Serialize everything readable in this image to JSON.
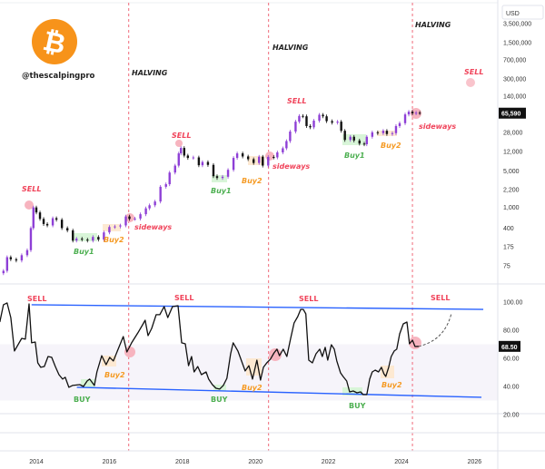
{
  "brand": {
    "handle": "@thescalpingpro",
    "logo": "bitcoin-logo",
    "logo_color": "#F7931A"
  },
  "colors": {
    "up": "#8E3FD6",
    "down": "#111111",
    "halving": "#F06A7A",
    "sell": "#F0435A",
    "buy": "#4CAF50",
    "buy2": "#F59A23",
    "channel": "#2962FF",
    "band": "#F6F4FA"
  },
  "price_axis": {
    "currency": "USD",
    "ticks": [
      "3,500,000",
      "1,500,000",
      "700,000",
      "300,000",
      "140,000",
      "28,000",
      "12,000",
      "5,000",
      "2,200",
      "1,000",
      "400",
      "175",
      "75"
    ],
    "current_label": "65,590"
  },
  "osc_axis": {
    "ticks": [
      "100.00",
      "80.00",
      "60.00",
      "40.00",
      "20.00"
    ],
    "current_label": "68.50"
  },
  "time_axis": {
    "ticks": [
      "2014",
      "2016",
      "2018",
      "2020",
      "2022",
      "2024",
      "2026"
    ]
  },
  "annotations": {
    "halving": "HALVING",
    "sell": "SELL",
    "buy": "BUY",
    "buy1": "Buy1",
    "buy2": "Buy2",
    "sideways": "sideways"
  },
  "chart_data": [
    {
      "type": "candlestick",
      "scale": "log",
      "ylabel": "USD",
      "ylim": [
        50,
        3500000
      ],
      "xlim": [
        2013.0,
        2026.6
      ],
      "current_value": 65590,
      "halvings": [
        2016.53,
        2020.36,
        2024.3
      ],
      "close": [
        [
          2013.1,
          60
        ],
        [
          2013.2,
          110
        ],
        [
          2013.3,
          100
        ],
        [
          2013.45,
          95
        ],
        [
          2013.6,
          120
        ],
        [
          2013.75,
          150
        ],
        [
          2013.85,
          400
        ],
        [
          2013.92,
          1000
        ],
        [
          2014.0,
          800
        ],
        [
          2014.1,
          600
        ],
        [
          2014.2,
          480
        ],
        [
          2014.3,
          450
        ],
        [
          2014.45,
          620
        ],
        [
          2014.55,
          580
        ],
        [
          2014.7,
          400
        ],
        [
          2014.85,
          360
        ],
        [
          2015.0,
          230
        ],
        [
          2015.1,
          250
        ],
        [
          2015.25,
          240
        ],
        [
          2015.4,
          230
        ],
        [
          2015.55,
          270
        ],
        [
          2015.7,
          240
        ],
        [
          2015.85,
          330
        ],
        [
          2016.0,
          420
        ],
        [
          2016.15,
          430
        ],
        [
          2016.3,
          450
        ],
        [
          2016.45,
          670
        ],
        [
          2016.55,
          600
        ],
        [
          2016.7,
          610
        ],
        [
          2016.85,
          740
        ],
        [
          2017.0,
          960
        ],
        [
          2017.1,
          1100
        ],
        [
          2017.25,
          1300
        ],
        [
          2017.4,
          2500
        ],
        [
          2017.55,
          2800
        ],
        [
          2017.65,
          4700
        ],
        [
          2017.8,
          6400
        ],
        [
          2017.9,
          11000
        ],
        [
          2017.96,
          14000
        ],
        [
          2018.05,
          10000
        ],
        [
          2018.15,
          9000
        ],
        [
          2018.3,
          9200
        ],
        [
          2018.45,
          6500
        ],
        [
          2018.55,
          7500
        ],
        [
          2018.7,
          6600
        ],
        [
          2018.85,
          4000
        ],
        [
          2018.95,
          3700
        ],
        [
          2019.1,
          3900
        ],
        [
          2019.25,
          5300
        ],
        [
          2019.4,
          9000
        ],
        [
          2019.5,
          11000
        ],
        [
          2019.65,
          9600
        ],
        [
          2019.8,
          8500
        ],
        [
          2019.95,
          7200
        ],
        [
          2020.1,
          9500
        ],
        [
          2020.2,
          6400
        ],
        [
          2020.35,
          9400
        ],
        [
          2020.5,
          9200
        ],
        [
          2020.6,
          11500
        ],
        [
          2020.75,
          13800
        ],
        [
          2020.85,
          19000
        ],
        [
          2020.95,
          29000
        ],
        [
          2021.1,
          45000
        ],
        [
          2021.2,
          58000
        ],
        [
          2021.3,
          57000
        ],
        [
          2021.4,
          37000
        ],
        [
          2021.5,
          35000
        ],
        [
          2021.6,
          47000
        ],
        [
          2021.75,
          61000
        ],
        [
          2021.85,
          57000
        ],
        [
          2021.95,
          46000
        ],
        [
          2022.1,
          43000
        ],
        [
          2022.25,
          45000
        ],
        [
          2022.35,
          30000
        ],
        [
          2022.45,
          20000
        ],
        [
          2022.6,
          23000
        ],
        [
          2022.7,
          19500
        ],
        [
          2022.85,
          17000
        ],
        [
          2022.98,
          16500
        ],
        [
          2023.05,
          23000
        ],
        [
          2023.2,
          28000
        ],
        [
          2023.35,
          27000
        ],
        [
          2023.5,
          30000
        ],
        [
          2023.6,
          26000
        ],
        [
          2023.75,
          27000
        ],
        [
          2023.85,
          37000
        ],
        [
          2023.95,
          42000
        ],
        [
          2024.1,
          62000
        ],
        [
          2024.2,
          70000
        ],
        [
          2024.3,
          65000
        ],
        [
          2024.4,
          67000
        ],
        [
          2024.5,
          65590
        ]
      ]
    },
    {
      "type": "line",
      "ylim": [
        20,
        110
      ],
      "xlim": [
        2013.0,
        2026.6
      ],
      "band": [
        30,
        70
      ],
      "current_value": 68.5,
      "series": [
        [
          2013.0,
          85.8
        ],
        [
          2013.1,
          98.1
        ],
        [
          2013.2,
          99.4
        ],
        [
          2013.3,
          89.0
        ],
        [
          2013.4,
          65.2
        ],
        [
          2013.6,
          74.2
        ],
        [
          2013.7,
          73.6
        ],
        [
          2013.8,
          98.7
        ],
        [
          2013.87,
          71.0
        ],
        [
          2013.97,
          71.6
        ],
        [
          2014.04,
          56.8
        ],
        [
          2014.12,
          53.6
        ],
        [
          2014.22,
          54.2
        ],
        [
          2014.32,
          61.3
        ],
        [
          2014.42,
          60.7
        ],
        [
          2014.52,
          54.2
        ],
        [
          2014.62,
          48.4
        ],
        [
          2014.72,
          45.2
        ],
        [
          2014.79,
          46.5
        ],
        [
          2014.89,
          39.4
        ],
        [
          2014.99,
          40.7
        ],
        [
          2015.19,
          41.3
        ],
        [
          2015.29,
          40.0
        ],
        [
          2015.39,
          43.9
        ],
        [
          2015.46,
          45.2
        ],
        [
          2015.59,
          40.7
        ],
        [
          2015.66,
          50.3
        ],
        [
          2015.79,
          61.9
        ],
        [
          2015.91,
          55.5
        ],
        [
          2016.01,
          60.7
        ],
        [
          2016.11,
          58.1
        ],
        [
          2016.23,
          65.8
        ],
        [
          2016.38,
          75.5
        ],
        [
          2016.48,
          64.5
        ],
        [
          2016.61,
          71.0
        ],
        [
          2016.78,
          78.1
        ],
        [
          2016.91,
          83.9
        ],
        [
          2016.98,
          87.1
        ],
        [
          2017.06,
          76.1
        ],
        [
          2017.16,
          81.3
        ],
        [
          2017.28,
          91.0
        ],
        [
          2017.38,
          91.0
        ],
        [
          2017.5,
          96.8
        ],
        [
          2017.6,
          89.0
        ],
        [
          2017.73,
          96.8
        ],
        [
          2017.88,
          97.4
        ],
        [
          2017.98,
          71.0
        ],
        [
          2018.08,
          70.3
        ],
        [
          2018.17,
          54.8
        ],
        [
          2018.25,
          61.3
        ],
        [
          2018.32,
          50.3
        ],
        [
          2018.42,
          54.2
        ],
        [
          2018.52,
          48.4
        ],
        [
          2018.65,
          50.3
        ],
        [
          2018.72,
          45.2
        ],
        [
          2018.82,
          41.3
        ],
        [
          2018.92,
          38.7
        ],
        [
          2019.02,
          38.1
        ],
        [
          2019.12,
          40.7
        ],
        [
          2019.22,
          45.8
        ],
        [
          2019.32,
          63.2
        ],
        [
          2019.39,
          71.0
        ],
        [
          2019.52,
          65.2
        ],
        [
          2019.62,
          58.1
        ],
        [
          2019.72,
          51.0
        ],
        [
          2019.82,
          54.8
        ],
        [
          2019.92,
          45.2
        ],
        [
          2020.04,
          58.7
        ],
        [
          2020.14,
          44.5
        ],
        [
          2020.22,
          53.6
        ],
        [
          2020.31,
          56.8
        ],
        [
          2020.41,
          59.4
        ],
        [
          2020.51,
          63.9
        ],
        [
          2020.59,
          66.5
        ],
        [
          2020.66,
          61.9
        ],
        [
          2020.76,
          66.5
        ],
        [
          2020.86,
          61.3
        ],
        [
          2020.96,
          73.6
        ],
        [
          2021.06,
          85.2
        ],
        [
          2021.16,
          89.7
        ],
        [
          2021.24,
          94.8
        ],
        [
          2021.31,
          94.8
        ],
        [
          2021.38,
          91.6
        ],
        [
          2021.46,
          58.7
        ],
        [
          2021.56,
          56.8
        ],
        [
          2021.66,
          63.2
        ],
        [
          2021.76,
          66.5
        ],
        [
          2021.83,
          61.3
        ],
        [
          2021.91,
          67.8
        ],
        [
          2021.98,
          58.7
        ],
        [
          2022.08,
          69.7
        ],
        [
          2022.16,
          66.5
        ],
        [
          2022.23,
          58.1
        ],
        [
          2022.33,
          49.7
        ],
        [
          2022.4,
          47.1
        ],
        [
          2022.5,
          43.9
        ],
        [
          2022.58,
          36.1
        ],
        [
          2022.68,
          36.8
        ],
        [
          2022.78,
          35.5
        ],
        [
          2022.88,
          36.1
        ],
        [
          2022.95,
          34.2
        ],
        [
          2023.05,
          34.2
        ],
        [
          2023.13,
          45.2
        ],
        [
          2023.2,
          50.3
        ],
        [
          2023.28,
          51.6
        ],
        [
          2023.37,
          50.3
        ],
        [
          2023.45,
          53.6
        ],
        [
          2023.52,
          49.0
        ],
        [
          2023.57,
          47.1
        ],
        [
          2023.65,
          53.6
        ],
        [
          2023.72,
          61.3
        ],
        [
          2023.8,
          65.2
        ],
        [
          2023.87,
          66.5
        ],
        [
          2023.95,
          77.4
        ],
        [
          2024.05,
          84.5
        ],
        [
          2024.15,
          85.8
        ],
        [
          2024.22,
          70.3
        ],
        [
          2024.3,
          72.9
        ],
        [
          2024.37,
          68.4
        ],
        [
          2024.47,
          68.5
        ]
      ],
      "projection": [
        [
          2024.47,
          68.5
        ],
        [
          2024.82,
          72.9
        ],
        [
          2025.19,
          81.3
        ],
        [
          2025.37,
          92.3
        ]
      ],
      "channel_upper": [
        [
          2013.87,
          98.1
        ],
        [
          2026.24,
          94.8
        ]
      ],
      "channel_lower": [
        [
          2015.11,
          39.4
        ],
        [
          2026.19,
          32.3
        ]
      ]
    }
  ]
}
